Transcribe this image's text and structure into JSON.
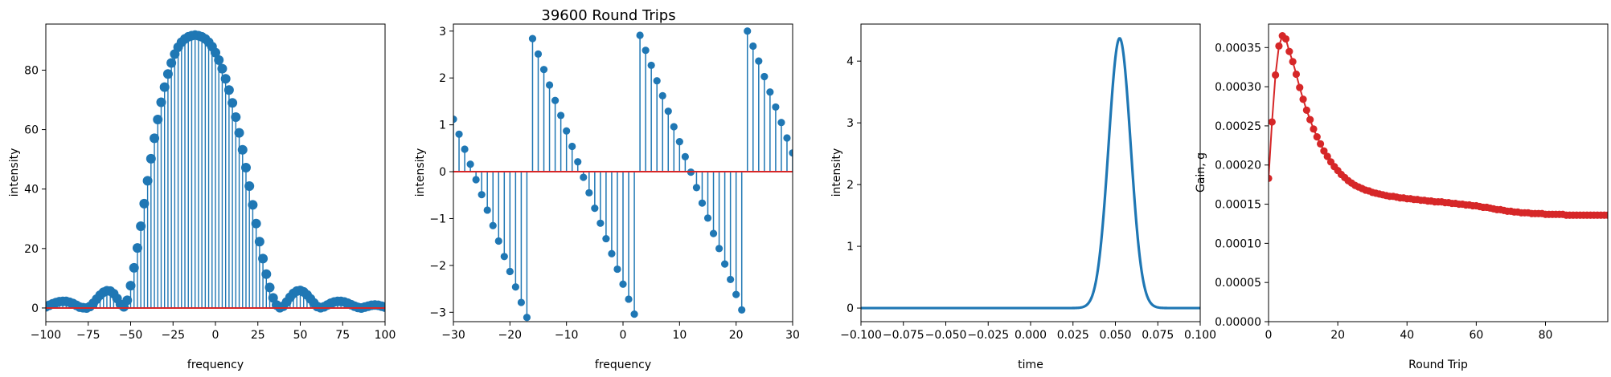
{
  "figure_title": "39600 Round Trips",
  "colors": {
    "stem": "#1f77b4",
    "baseline": "#d62728",
    "gain": "#d62728",
    "axes": "#000000"
  },
  "chart_data": [
    {
      "type": "stem",
      "xlabel": "frequency",
      "ylabel": "intensity",
      "xlim": [
        -100,
        100
      ],
      "ylim": [
        -4.6,
        95.5
      ],
      "xticks": [
        -100,
        -75,
        -50,
        -25,
        0,
        25,
        50,
        75,
        100
      ],
      "yticks": [
        0,
        20,
        40,
        60,
        80
      ],
      "x": [
        -100,
        -98,
        -96,
        -94,
        -92,
        -90,
        -88,
        -86,
        -84,
        -82,
        -80,
        -78,
        -76,
        -74,
        -72,
        -70,
        -68,
        -66,
        -64,
        -62,
        -60,
        -58,
        -56,
        -54,
        -52,
        -50,
        -48,
        -46,
        -44,
        -42,
        -40,
        -38,
        -36,
        -34,
        -32,
        -30,
        -28,
        -26,
        -24,
        -22,
        -20,
        -18,
        -16,
        -14,
        -12,
        -10,
        -8,
        -6,
        -4,
        -2,
        0,
        2,
        4,
        6,
        8,
        10,
        12,
        14,
        16,
        18,
        20,
        22,
        24,
        26,
        28,
        30,
        32,
        34,
        36,
        38,
        40,
        42,
        44,
        46,
        48,
        50,
        52,
        54,
        56,
        58,
        60,
        62,
        64,
        66,
        68,
        70,
        72,
        74,
        76,
        78,
        80,
        82,
        84,
        86,
        88,
        90,
        92,
        94,
        96,
        98,
        100
      ],
      "values": [
        0.4,
        0.9,
        1.4,
        1.8,
        2.1,
        2.2,
        2.2,
        1.9,
        1.5,
        0.9,
        0.3,
        0.1,
        0.0,
        0.5,
        1.6,
        3.0,
        4.3,
        5.3,
        5.8,
        5.7,
        4.8,
        3.2,
        1.2,
        0.4,
        2.6,
        7.5,
        13.5,
        20.2,
        27.5,
        35.1,
        42.8,
        50.2,
        57.1,
        63.4,
        69.2,
        74.3,
        78.7,
        82.4,
        85.4,
        87.7,
        89.4,
        90.5,
        91.2,
        91.6,
        91.8,
        91.6,
        91.2,
        90.5,
        89.4,
        87.9,
        85.9,
        83.4,
        80.5,
        77.1,
        73.3,
        69.0,
        64.2,
        58.9,
        53.2,
        47.2,
        41.0,
        34.7,
        28.4,
        22.3,
        16.6,
        11.4,
        6.9,
        3.4,
        1.0,
        0.1,
        0.6,
        2.0,
        3.6,
        4.9,
        5.7,
        5.9,
        5.4,
        4.4,
        3.1,
        1.7,
        0.5,
        0.1,
        0.4,
        1.0,
        1.6,
        2.0,
        2.2,
        2.2,
        2.0,
        1.6,
        1.1,
        0.6,
        0.2,
        0.0,
        0.3,
        0.6,
        0.9,
        1.0,
        0.9,
        0.6,
        0.3
      ]
    },
    {
      "type": "stem",
      "title": "39600 Round Trips",
      "xlabel": "frequency",
      "ylabel": "intensity",
      "xlim": [
        -30,
        30
      ],
      "ylim": [
        -3.2,
        3.15
      ],
      "xticks": [
        -30,
        -20,
        -10,
        0,
        10,
        20,
        30
      ],
      "yticks": [
        -3,
        -2,
        -1,
        0,
        1,
        2,
        3
      ],
      "x": [
        -30,
        -29,
        -28,
        -27,
        -26,
        -25,
        -24,
        -23,
        -22,
        -21,
        -20,
        -19,
        -18,
        -17,
        -16,
        -15,
        -14,
        -13,
        -12,
        -11,
        -10,
        -9,
        -8,
        -7,
        -6,
        -5,
        -4,
        -3,
        -2,
        -1,
        0,
        1,
        2,
        3,
        4,
        5,
        6,
        7,
        8,
        9,
        10,
        11,
        12,
        13,
        14,
        15,
        16,
        17,
        18,
        19,
        20,
        21,
        22,
        23,
        24,
        25,
        26,
        27,
        28,
        29,
        30
      ],
      "values": [
        1.12,
        0.8,
        0.48,
        0.16,
        -0.17,
        -0.49,
        -0.82,
        -1.15,
        -1.48,
        -1.81,
        -2.13,
        -2.46,
        -2.79,
        -3.11,
        2.84,
        2.51,
        2.18,
        1.85,
        1.52,
        1.2,
        0.87,
        0.54,
        0.21,
        -0.12,
        -0.45,
        -0.78,
        -1.1,
        -1.43,
        -1.75,
        -2.08,
        -2.4,
        -2.72,
        -3.04,
        2.91,
        2.59,
        2.27,
        1.94,
        1.62,
        1.29,
        0.96,
        0.64,
        0.32,
        -0.01,
        -0.34,
        -0.67,
        -0.99,
        -1.32,
        -1.64,
        -1.97,
        -2.3,
        -2.62,
        -2.95,
        3.0,
        2.68,
        2.36,
        2.03,
        1.7,
        1.38,
        1.05,
        0.72,
        0.4
      ]
    },
    {
      "type": "line",
      "xlabel": "time",
      "ylabel": "intensity",
      "xlim": [
        -0.1,
        0.1
      ],
      "ylim": [
        -0.22,
        4.6
      ],
      "xticks": [
        "-0.100",
        "-0.075",
        "-0.050",
        "-0.025",
        "0.000",
        "0.025",
        "0.050",
        "0.075",
        "0.100"
      ],
      "yticks": [
        0,
        1,
        2,
        3,
        4
      ],
      "peak": {
        "center": 0.0525,
        "sigma": 0.0065,
        "height": 4.37
      }
    },
    {
      "type": "line",
      "markers": true,
      "xlabel": "Round Trip",
      "ylabel": "Gain, g",
      "xlim": [
        0,
        98
      ],
      "ylim": [
        0,
        0.00038
      ],
      "xticks": [
        0,
        20,
        40,
        60,
        80
      ],
      "yticks": [
        "0.00000",
        "0.00005",
        "0.00010",
        "0.00015",
        "0.00020",
        "0.00025",
        "0.00030",
        "0.00035"
      ],
      "x": [
        0,
        1,
        2,
        3,
        4,
        5,
        6,
        7,
        8,
        9,
        10,
        11,
        12,
        13,
        14,
        15,
        16,
        17,
        18,
        19,
        20,
        21,
        22,
        23,
        24,
        25,
        26,
        27,
        28,
        29,
        30,
        31,
        32,
        33,
        34,
        35,
        36,
        37,
        38,
        39,
        40,
        41,
        42,
        43,
        44,
        45,
        46,
        47,
        48,
        49,
        50,
        51,
        52,
        53,
        54,
        55,
        56,
        57,
        58,
        59,
        60,
        61,
        62,
        63,
        64,
        65,
        66,
        67,
        68,
        69,
        70,
        71,
        72,
        73,
        74,
        75,
        76,
        77,
        78,
        79,
        80,
        81,
        82,
        83,
        84,
        85,
        86,
        87,
        88,
        89,
        90,
        91,
        92,
        93,
        94,
        95,
        96,
        97,
        98
      ],
      "values": [
        0.000183,
        0.000255,
        0.000315,
        0.000352,
        0.000365,
        0.000361,
        0.000345,
        0.000332,
        0.000316,
        0.000299,
        0.000284,
        0.00027,
        0.000258,
        0.000246,
        0.000236,
        0.000227,
        0.000218,
        0.000211,
        0.000204,
        0.000198,
        0.000193,
        0.000188,
        0.000184,
        0.00018,
        0.000177,
        0.000174,
        0.000172,
        0.00017,
        0.000168,
        0.000167,
        0.000165,
        0.000164,
        0.000163,
        0.000162,
        0.000161,
        0.00016,
        0.00016,
        0.000159,
        0.000158,
        0.000158,
        0.000157,
        0.000157,
        0.000156,
        0.000156,
        0.000155,
        0.000155,
        0.000154,
        0.000154,
        0.000153,
        0.000153,
        0.000153,
        0.000152,
        0.000152,
        0.000151,
        0.000151,
        0.00015,
        0.00015,
        0.000149,
        0.000149,
        0.000148,
        0.000148,
        0.000147,
        0.000146,
        0.000146,
        0.000145,
        0.000144,
        0.000143,
        0.000143,
        0.000142,
        0.000141,
        0.000141,
        0.00014,
        0.00014,
        0.000139,
        0.000139,
        0.000139,
        0.000138,
        0.000138,
        0.000138,
        0.000138,
        0.000137,
        0.000137,
        0.000137,
        0.000137,
        0.000137,
        0.000137,
        0.000136,
        0.000136,
        0.000136,
        0.000136,
        0.000136,
        0.000136,
        0.000136,
        0.000136,
        0.000136,
        0.000136,
        0.000136,
        0.000136,
        0.000136
      ]
    }
  ]
}
